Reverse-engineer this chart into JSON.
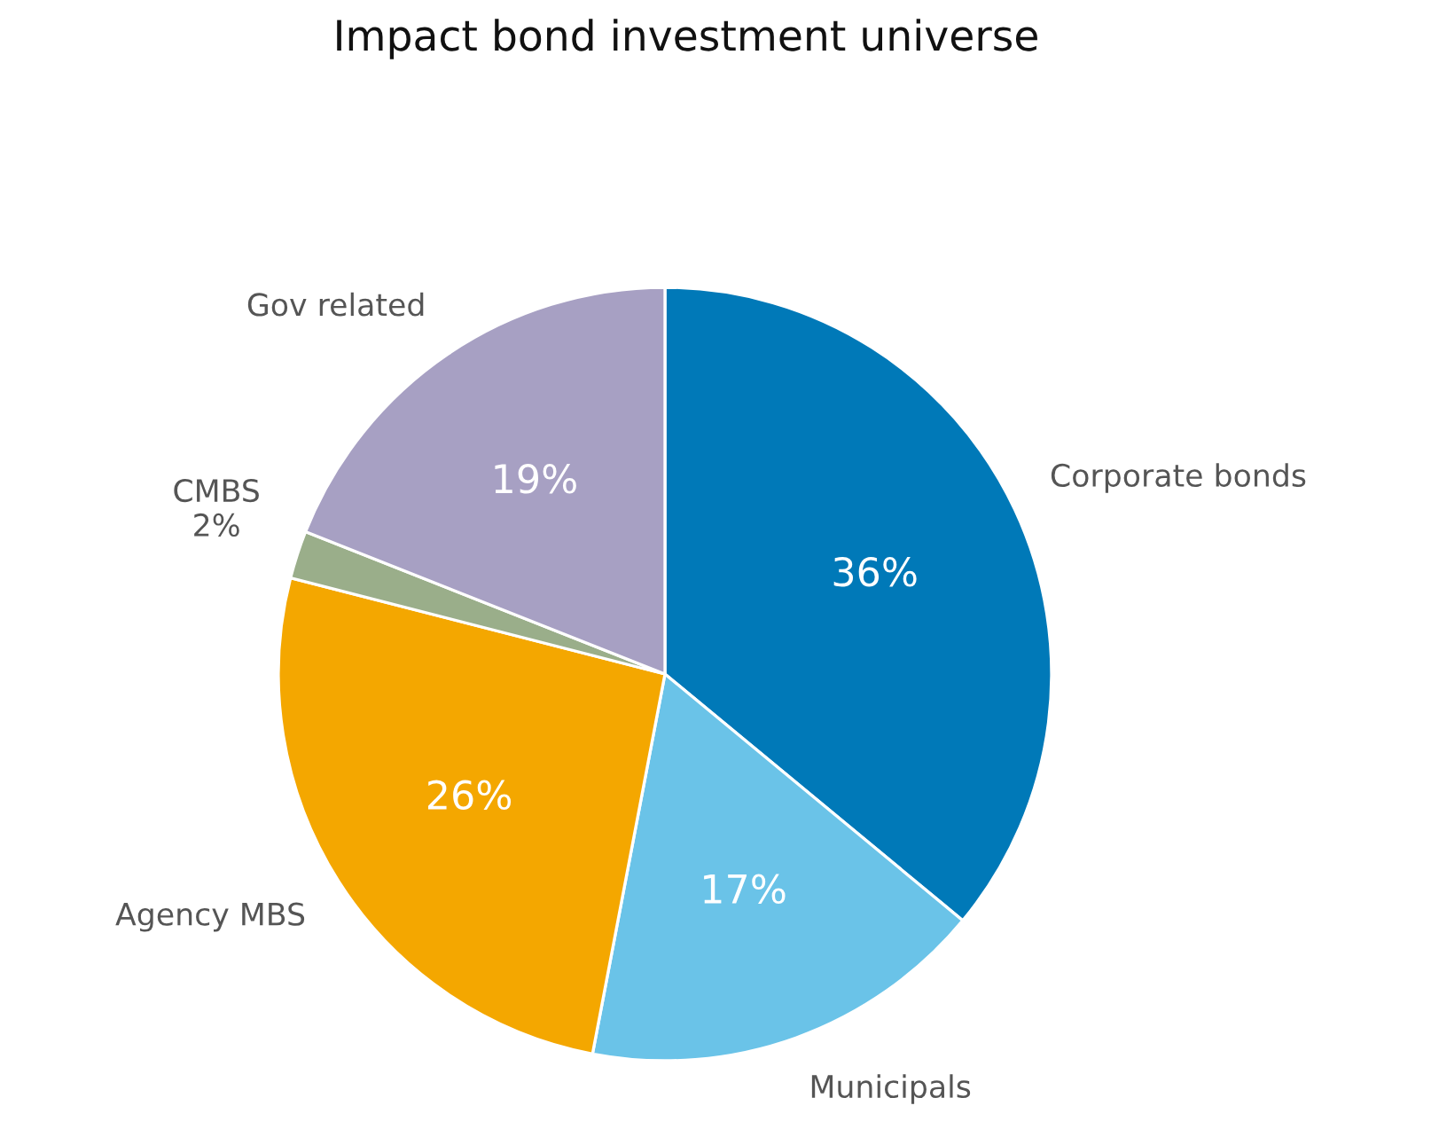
{
  "chart_data": {
    "type": "pie",
    "title": "Impact bond investment universe",
    "categories": [
      "Corporate bonds",
      "Municipals",
      "Agency MBS",
      "CMBS",
      "Gov related"
    ],
    "values": [
      36,
      17,
      26,
      2,
      19
    ],
    "value_labels": [
      "36%",
      "17%",
      "26%",
      "2%",
      "19%"
    ],
    "colors": [
      "#0079b8",
      "#6ac3e8",
      "#f4a700",
      "#9aae8a",
      "#a7a0c3"
    ]
  }
}
